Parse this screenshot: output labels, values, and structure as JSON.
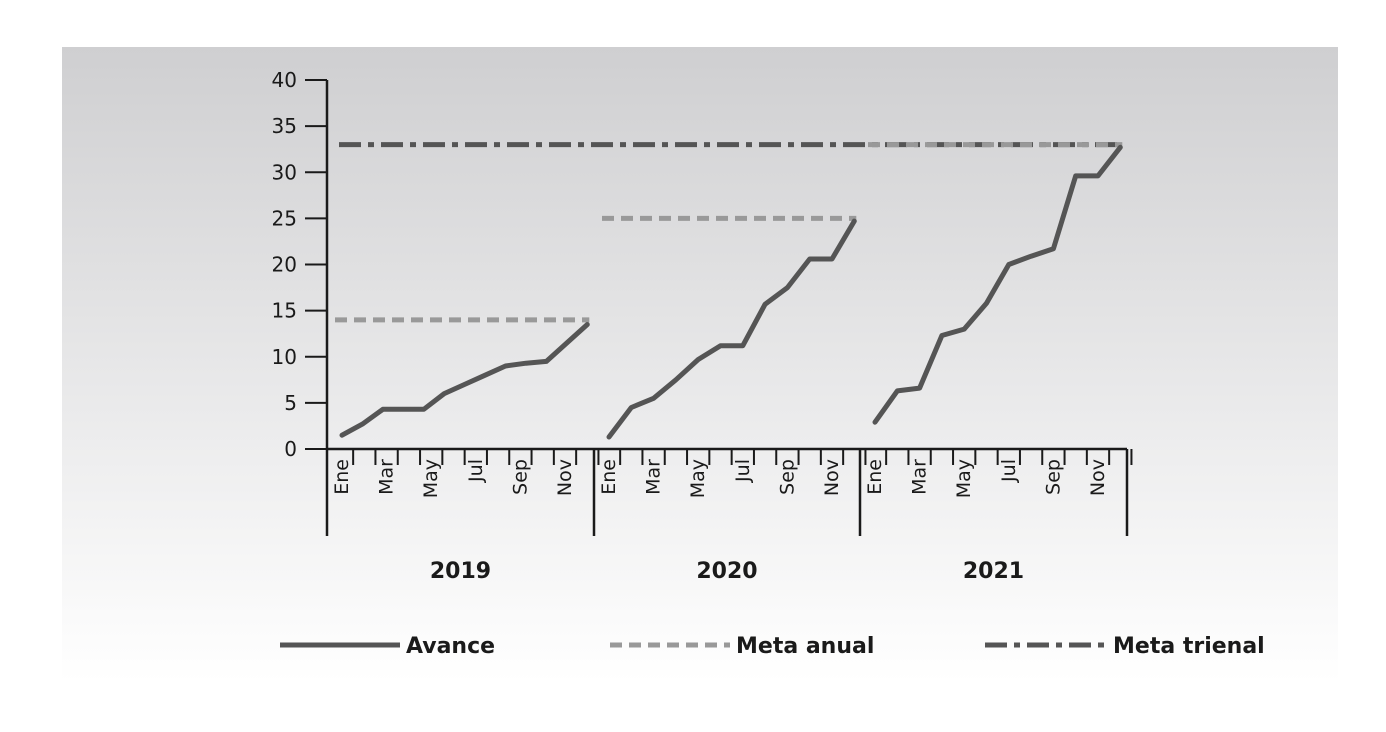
{
  "chart_data": {
    "type": "line",
    "ylim": [
      0,
      40
    ],
    "y_ticks": [
      "0",
      "5",
      "10",
      "15",
      "20",
      "25",
      "30",
      "35",
      "40"
    ],
    "grid": false,
    "legend_position": "bottom",
    "colors": {
      "avance": "#555555",
      "meta_anual": "#999999",
      "meta_trienal": "#555555",
      "background_top": "#cfcfd1",
      "background_bottom": "#ffffff"
    },
    "years": [
      {
        "label": "2019",
        "month_labels": [
          "Ene",
          "Mar",
          "May",
          "Jul",
          "Sep",
          "Nov"
        ]
      },
      {
        "label": "2020",
        "month_labels": [
          "Ene",
          "Mar",
          "May",
          "Jul",
          "Sep",
          "Nov"
        ]
      },
      {
        "label": "2021",
        "month_labels": [
          "Ene",
          "Mar",
          "May",
          "Jul",
          "Sep",
          "Nov"
        ]
      }
    ],
    "series": [
      {
        "name": "Avance",
        "style": "solid",
        "values": [
          [
            1.5,
            2.7,
            4.3,
            4.3,
            4.3,
            6.0,
            7.0,
            8.0,
            9.0,
            9.3,
            9.5,
            11.5,
            13.5
          ],
          [
            1.3,
            4.5,
            5.5,
            7.5,
            9.7,
            11.2,
            11.2,
            15.7,
            17.5,
            20.6,
            20.6,
            24.7
          ],
          [
            2.9,
            6.3,
            6.6,
            12.3,
            13.0,
            15.8,
            20.0,
            20.9,
            21.7,
            29.6,
            29.6,
            32.7
          ]
        ]
      },
      {
        "name": "Meta anual",
        "style": "dashed",
        "values": [
          14,
          25,
          33
        ]
      },
      {
        "name": "Meta trienal",
        "style": "dashdot",
        "value": 33
      }
    ]
  }
}
